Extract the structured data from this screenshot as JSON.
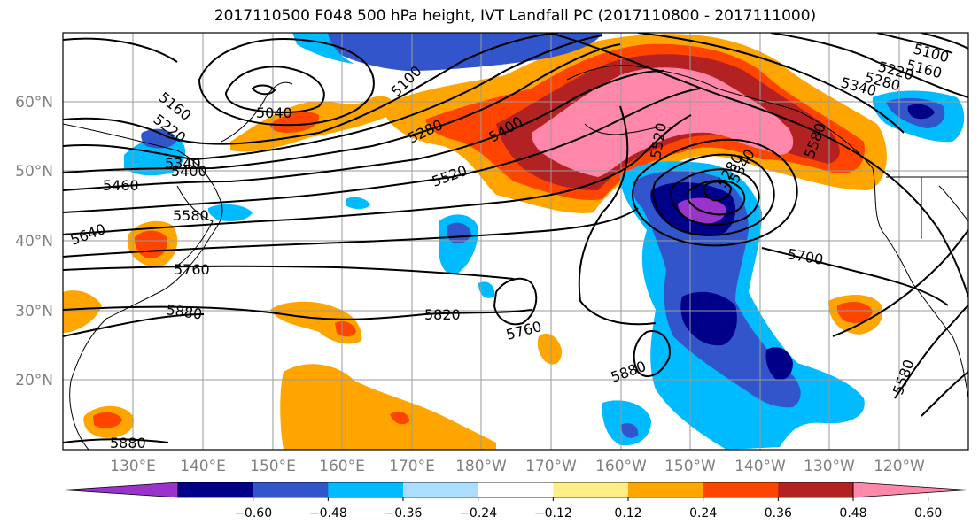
{
  "title": "2017110500 F048 500 hPa height, IVT Landfall PC (2017110800 - 2017111000)",
  "lat_labels": [
    "60°N",
    "50°N",
    "40°N",
    "30°N",
    "20°N"
  ],
  "lon_labels": [
    "130°E",
    "140°E",
    "150°E",
    "160°E",
    "170°E",
    "180°W",
    "170°W",
    "160°W",
    "150°W",
    "140°W",
    "130°W",
    "120°W"
  ],
  "contour_labels": [
    "5160",
    "5220",
    "5040",
    "5100",
    "5280",
    "5400",
    "5520",
    "5340",
    "5400",
    "5460",
    "5580",
    "5640",
    "5760",
    "5880",
    "5820",
    "5760",
    "5700",
    "5880",
    "5880",
    "5100",
    "5160",
    "5220",
    "5280",
    "5340",
    "5280",
    "5340",
    "5520",
    "5580",
    "5580"
  ],
  "colorbar": {
    "ticks": [
      "−0.60",
      "−0.48",
      "−0.36",
      "−0.24",
      "−0.12",
      "0.12",
      "0.24",
      "0.36",
      "0.48",
      "0.60"
    ],
    "colors": [
      "#9933cc",
      "#000088",
      "#3355cc",
      "#00bbff",
      "#aaddff",
      "#ffffff",
      "#ffee88",
      "#ffa500",
      "#ff4400",
      "#b22222",
      "#ff88aa"
    ]
  },
  "legend_palette": {
    "neg_strong": "#9933cc",
    "neg4": "#000088",
    "neg3": "#3355cc",
    "neg2": "#00bbff",
    "neg1": "#aaddff",
    "pos1": "#ffee88",
    "pos2": "#ffa500",
    "pos3": "#ff4400",
    "pos4": "#b22222",
    "pos_strong": "#ff88aa"
  }
}
